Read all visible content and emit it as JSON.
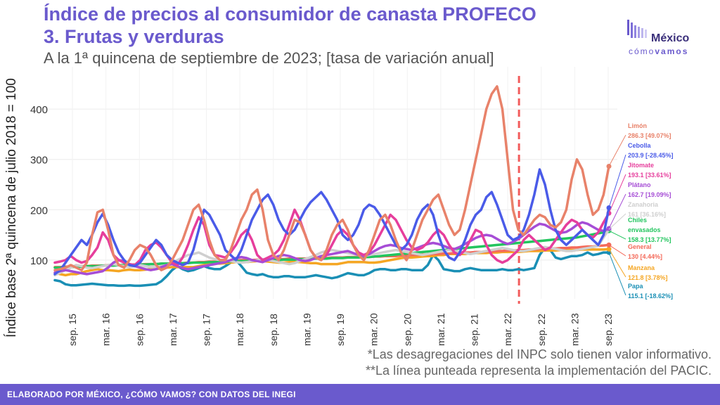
{
  "title_line1": "Índice de precios al consumidor de canasta PROFECO",
  "title_line2": "3. Frutas y verduras",
  "subtitle": "A la 1ª quincena de septiembre de 2023; [tasa de variación anual]",
  "logo": {
    "name": "México",
    "sub_part1": "cómo",
    "sub_part2": "vamos"
  },
  "notes": [
    "*Las desagregaciones del INPC solo tienen valor informativo.",
    "**La línea punteada representa la implementación del PACIC."
  ],
  "footer": "ELABORADO POR MÉXICO, ¿CÓMO VAMOS? CON DATOS DEL INEGI",
  "colors": {
    "accent": "#6a5acd",
    "pacic_line": "#f25c5c"
  },
  "chart_data": {
    "type": "line",
    "ylabel": "Índice base 2ª quincena de julio 2018 = 100",
    "xlabel": "",
    "ylim": [
      30,
      470
    ],
    "yticks": [
      100,
      200,
      300,
      400
    ],
    "x_tick_labels": [
      "sep. 15",
      "mar. 16",
      "sep. 16",
      "mar. 17",
      "sep. 17",
      "mar. 18",
      "sep. 18",
      "mar. 19",
      "sep. 19",
      "mar. 20",
      "sep. 20",
      "mar. 21",
      "sep. 21",
      "mar. 22",
      "sep. 22",
      "mar. 23",
      "sep. 23"
    ],
    "pacic_marker": "may. 22",
    "series": [
      {
        "name": "Papa",
        "color": "#1a8fb5",
        "label": "Papa",
        "value_label": "115.1 [-18.62%]",
        "values": [
          60,
          58,
          52,
          50,
          50,
          51,
          52,
          53,
          52,
          51,
          50,
          50,
          49,
          49,
          50,
          49,
          49,
          50,
          51,
          52,
          58,
          68,
          80,
          88,
          82,
          78,
          80,
          84,
          88,
          84,
          82,
          82,
          88,
          95,
          100,
          88,
          75,
          72,
          70,
          72,
          68,
          66,
          66,
          68,
          68,
          66,
          66,
          66,
          68,
          70,
          68,
          66,
          64,
          66,
          70,
          74,
          72,
          70,
          70,
          74,
          80,
          82,
          82,
          80,
          80,
          82,
          82,
          80,
          80,
          80,
          90,
          110,
          100,
          82,
          80,
          78,
          78,
          82,
          84,
          82,
          80,
          80,
          80,
          80,
          82,
          80,
          80,
          82,
          80,
          82,
          84,
          110,
          125,
          120,
          105,
          102,
          105,
          108,
          108,
          110,
          115,
          110,
          112,
          115,
          115.1
        ]
      },
      {
        "name": "Manzana",
        "color": "#f5a623",
        "label": "Manzana",
        "value_label": "121.8 [3.78%]",
        "values": [
          75,
          72,
          70,
          72,
          72,
          75,
          78,
          80,
          82,
          80,
          80,
          79,
          78,
          80,
          81,
          80,
          80,
          81,
          82,
          82,
          84,
          85,
          86,
          86,
          86,
          86,
          86,
          88,
          90,
          92,
          93,
          93,
          94,
          95,
          96,
          96,
          96,
          97,
          98,
          98,
          97,
          96,
          95,
          95,
          96,
          96,
          96,
          95,
          94,
          94,
          92,
          92,
          92,
          92,
          94,
          96,
          96,
          96,
          96,
          95,
          95,
          96,
          98,
          100,
          102,
          104,
          105,
          105,
          106,
          107,
          108,
          108,
          110,
          110,
          112,
          112,
          112,
          112,
          114,
          114,
          114,
          114,
          115,
          115,
          116,
          116,
          116,
          116,
          117,
          118,
          118,
          118,
          119,
          119,
          119,
          120,
          120,
          120,
          120,
          121,
          121,
          121,
          121,
          121,
          121.8
        ]
      },
      {
        "name": "General",
        "color": "#f46a5a",
        "label": "General",
        "value_label": "130 [4.44%]",
        "values": [
          86,
          86,
          87,
          87,
          88,
          88,
          88,
          89,
          89,
          89,
          90,
          90,
          90,
          90,
          91,
          91,
          91,
          92,
          92,
          92,
          93,
          93,
          93,
          94,
          94,
          95,
          95,
          96,
          96,
          97,
          97,
          98,
          98,
          99,
          99,
          100,
          100,
          100,
          101,
          101,
          101,
          102,
          102,
          102,
          103,
          103,
          103,
          103,
          104,
          104,
          104,
          104,
          105,
          105,
          105,
          106,
          106,
          106,
          106,
          107,
          107,
          107,
          108,
          108,
          108,
          109,
          109,
          110,
          110,
          111,
          111,
          112,
          112,
          113,
          113,
          114,
          114,
          115,
          115,
          116,
          116,
          117,
          117,
          118,
          118,
          119,
          119,
          120,
          120,
          121,
          121,
          122,
          122,
          123,
          123,
          124,
          124,
          125,
          125,
          126,
          127,
          127,
          128,
          129,
          130
        ]
      },
      {
        "name": "Chiles envasados",
        "color": "#22c55e",
        "label": "Chiles",
        "label2": "envasados",
        "value_label": "158.3 [13.77%]",
        "values": [
          85,
          85,
          86,
          86,
          87,
          87,
          88,
          88,
          88,
          89,
          89,
          89,
          90,
          90,
          90,
          91,
          91,
          91,
          92,
          92,
          93,
          93,
          93,
          94,
          94,
          94,
          95,
          95,
          95,
          96,
          96,
          96,
          97,
          97,
          98,
          98,
          98,
          99,
          99,
          99,
          100,
          100,
          100,
          101,
          101,
          101,
          102,
          102,
          102,
          103,
          103,
          103,
          104,
          104,
          104,
          105,
          105,
          105,
          106,
          106,
          107,
          108,
          109,
          110,
          111,
          112,
          113,
          114,
          115,
          116,
          117,
          118,
          119,
          120,
          121,
          122,
          123,
          124,
          125,
          126,
          127,
          128,
          129,
          130,
          131,
          132,
          133,
          134,
          135,
          136,
          137,
          138,
          139,
          140,
          141,
          142,
          143,
          144,
          145,
          147,
          149,
          151,
          153,
          155,
          158.3
        ]
      },
      {
        "name": "Zanahoria",
        "color": "#cfcfcf",
        "label": "Zanahoria",
        "value_label": "161 [36.16%]",
        "values": [
          70,
          75,
          80,
          85,
          90,
          88,
          85,
          84,
          86,
          88,
          90,
          92,
          90,
          88,
          86,
          88,
          90,
          88,
          86,
          86,
          88,
          90,
          95,
          100,
          105,
          110,
          112,
          115,
          110,
          105,
          102,
          100,
          100,
          98,
          96,
          95,
          96,
          98,
          100,
          102,
          100,
          98,
          96,
          94,
          92,
          94,
          98,
          102,
          106,
          110,
          115,
          118,
          120,
          118,
          116,
          114,
          112,
          110,
          108,
          110,
          112,
          114,
          116,
          118,
          120,
          118,
          116,
          114,
          112,
          110,
          112,
          114,
          116,
          118,
          120,
          118,
          116,
          114,
          112,
          114,
          116,
          118,
          120,
          122,
          124,
          122,
          120,
          118,
          118,
          120,
          122,
          124,
          126,
          124,
          122,
          120,
          118,
          118,
          120,
          122,
          124,
          126,
          128,
          145,
          161
        ]
      },
      {
        "name": "Plátano",
        "color": "#a64dd6",
        "label": "Plátano",
        "value_label": "162.7 [19.09%]",
        "values": [
          75,
          78,
          80,
          78,
          76,
          74,
          72,
          74,
          76,
          78,
          85,
          95,
          100,
          98,
          92,
          88,
          85,
          82,
          80,
          82,
          86,
          90,
          92,
          88,
          84,
          82,
          84,
          86,
          88,
          90,
          92,
          94,
          96,
          100,
          104,
          106,
          104,
          100,
          98,
          96,
          100,
          104,
          108,
          110,
          108,
          104,
          100,
          98,
          100,
          104,
          108,
          110,
          112,
          114,
          116,
          118,
          114,
          110,
          108,
          112,
          118,
          124,
          128,
          130,
          128,
          124,
          122,
          120,
          124,
          128,
          132,
          134,
          132,
          128,
          124,
          122,
          126,
          132,
          138,
          144,
          148,
          150,
          148,
          142,
          136,
          132,
          136,
          142,
          150,
          158,
          166,
          172,
          170,
          164,
          158,
          154,
          156,
          162,
          170,
          175,
          172,
          166,
          160,
          158,
          162.7
        ]
      },
      {
        "name": "Jitomate",
        "color": "#e63e9c",
        "label": "Jitomate",
        "value_label": "193.1 [33.61%]",
        "values": [
          95,
          97,
          100,
          108,
          100,
          95,
          98,
          110,
          125,
          155,
          140,
          110,
          100,
          95,
          92,
          90,
          100,
          120,
          130,
          135,
          125,
          110,
          95,
          90,
          105,
          130,
          160,
          185,
          170,
          130,
          110,
          108,
          105,
          115,
          130,
          150,
          160,
          140,
          110,
          100,
          105,
          110,
          120,
          140,
          170,
          200,
          180,
          150,
          120,
          105,
          100,
          110,
          130,
          150,
          160,
          150,
          130,
          115,
          110,
          115,
          130,
          150,
          170,
          190,
          180,
          160,
          140,
          125,
          120,
          125,
          135,
          150,
          160,
          150,
          130,
          115,
          110,
          120,
          140,
          160,
          155,
          130,
          110,
          100,
          95,
          100,
          110,
          120,
          140,
          150,
          140,
          130,
          120,
          125,
          140,
          155,
          170,
          180,
          175,
          160,
          150,
          145,
          155,
          175,
          193.1
        ]
      },
      {
        "name": "Cebolla",
        "color": "#4a5be8",
        "label": "Cebolla",
        "value_label": "203.9 [-28.45%]",
        "values": [
          72,
          80,
          95,
          110,
          125,
          140,
          130,
          150,
          175,
          192,
          170,
          140,
          115,
          100,
          90,
          88,
          95,
          110,
          125,
          140,
          130,
          110,
          100,
          95,
          90,
          95,
          120,
          160,
          200,
          190,
          170,
          150,
          120,
          110,
          100,
          120,
          150,
          180,
          200,
          220,
          230,
          210,
          180,
          160,
          150,
          160,
          180,
          200,
          215,
          225,
          235,
          220,
          200,
          180,
          150,
          140,
          150,
          170,
          200,
          210,
          205,
          190,
          170,
          150,
          130,
          120,
          130,
          150,
          180,
          200,
          210,
          190,
          150,
          120,
          105,
          100,
          115,
          140,
          170,
          190,
          200,
          225,
          235,
          210,
          180,
          150,
          140,
          145,
          160,
          190,
          230,
          280,
          250,
          200,
          160,
          140,
          130,
          140,
          150,
          160,
          150,
          140,
          130,
          150,
          203.9
        ]
      },
      {
        "name": "Limón",
        "color": "#e8826a",
        "label": "Limón",
        "value_label": "286.3 [49.07%]",
        "values": [
          80,
          82,
          85,
          90,
          85,
          80,
          95,
          150,
          195,
          200,
          160,
          110,
          90,
          85,
          100,
          120,
          130,
          125,
          110,
          90,
          80,
          85,
          100,
          120,
          140,
          170,
          200,
          210,
          180,
          140,
          110,
          100,
          100,
          120,
          150,
          180,
          200,
          230,
          240,
          200,
          140,
          110,
          100,
          120,
          150,
          180,
          175,
          150,
          120,
          105,
          100,
          120,
          150,
          170,
          180,
          160,
          130,
          110,
          100,
          120,
          150,
          180,
          190,
          170,
          140,
          115,
          100,
          120,
          150,
          180,
          200,
          220,
          230,
          200,
          170,
          150,
          160,
          200,
          250,
          300,
          350,
          400,
          430,
          445,
          400,
          300,
          200,
          160,
          150,
          165,
          180,
          190,
          185,
          170,
          165,
          175,
          200,
          260,
          300,
          280,
          230,
          190,
          200,
          230,
          286.3
        ]
      }
    ]
  }
}
